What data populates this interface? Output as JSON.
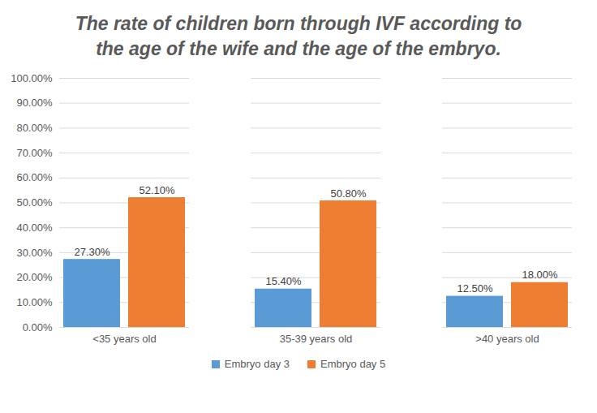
{
  "chart_data": {
    "type": "bar",
    "title": "The rate of children born through IVF according to the age of the wife and the age of the embryo.",
    "categories": [
      "<35 years old",
      "35-39 years old",
      ">40 years old"
    ],
    "series": [
      {
        "name": "Embryo day 3",
        "color": "#5b9bd5",
        "values": [
          27.3,
          15.4,
          12.5
        ],
        "value_labels": [
          "27.30%",
          "15.40%",
          "12.50%"
        ]
      },
      {
        "name": "Embryo day 5",
        "color": "#ed7d31",
        "values": [
          52.1,
          50.8,
          18.0
        ],
        "value_labels": [
          "52.10%",
          "50.80%",
          "18.00%"
        ]
      }
    ],
    "ylim": [
      0,
      100
    ],
    "yticks": [
      {
        "value": 0,
        "label": "0.00%"
      },
      {
        "value": 10,
        "label": "10.00%"
      },
      {
        "value": 20,
        "label": "20.00%"
      },
      {
        "value": 30,
        "label": "30.00%"
      },
      {
        "value": 40,
        "label": "40.00%"
      },
      {
        "value": 50,
        "label": "50.00%"
      },
      {
        "value": 60,
        "label": "60.00%"
      },
      {
        "value": 70,
        "label": "70.00%"
      },
      {
        "value": 80,
        "label": "80.00%"
      },
      {
        "value": 90,
        "label": "90.00%"
      },
      {
        "value": 100,
        "label": "100.00%"
      }
    ],
    "grid": true,
    "data_labels": true,
    "legend": "bottom"
  }
}
